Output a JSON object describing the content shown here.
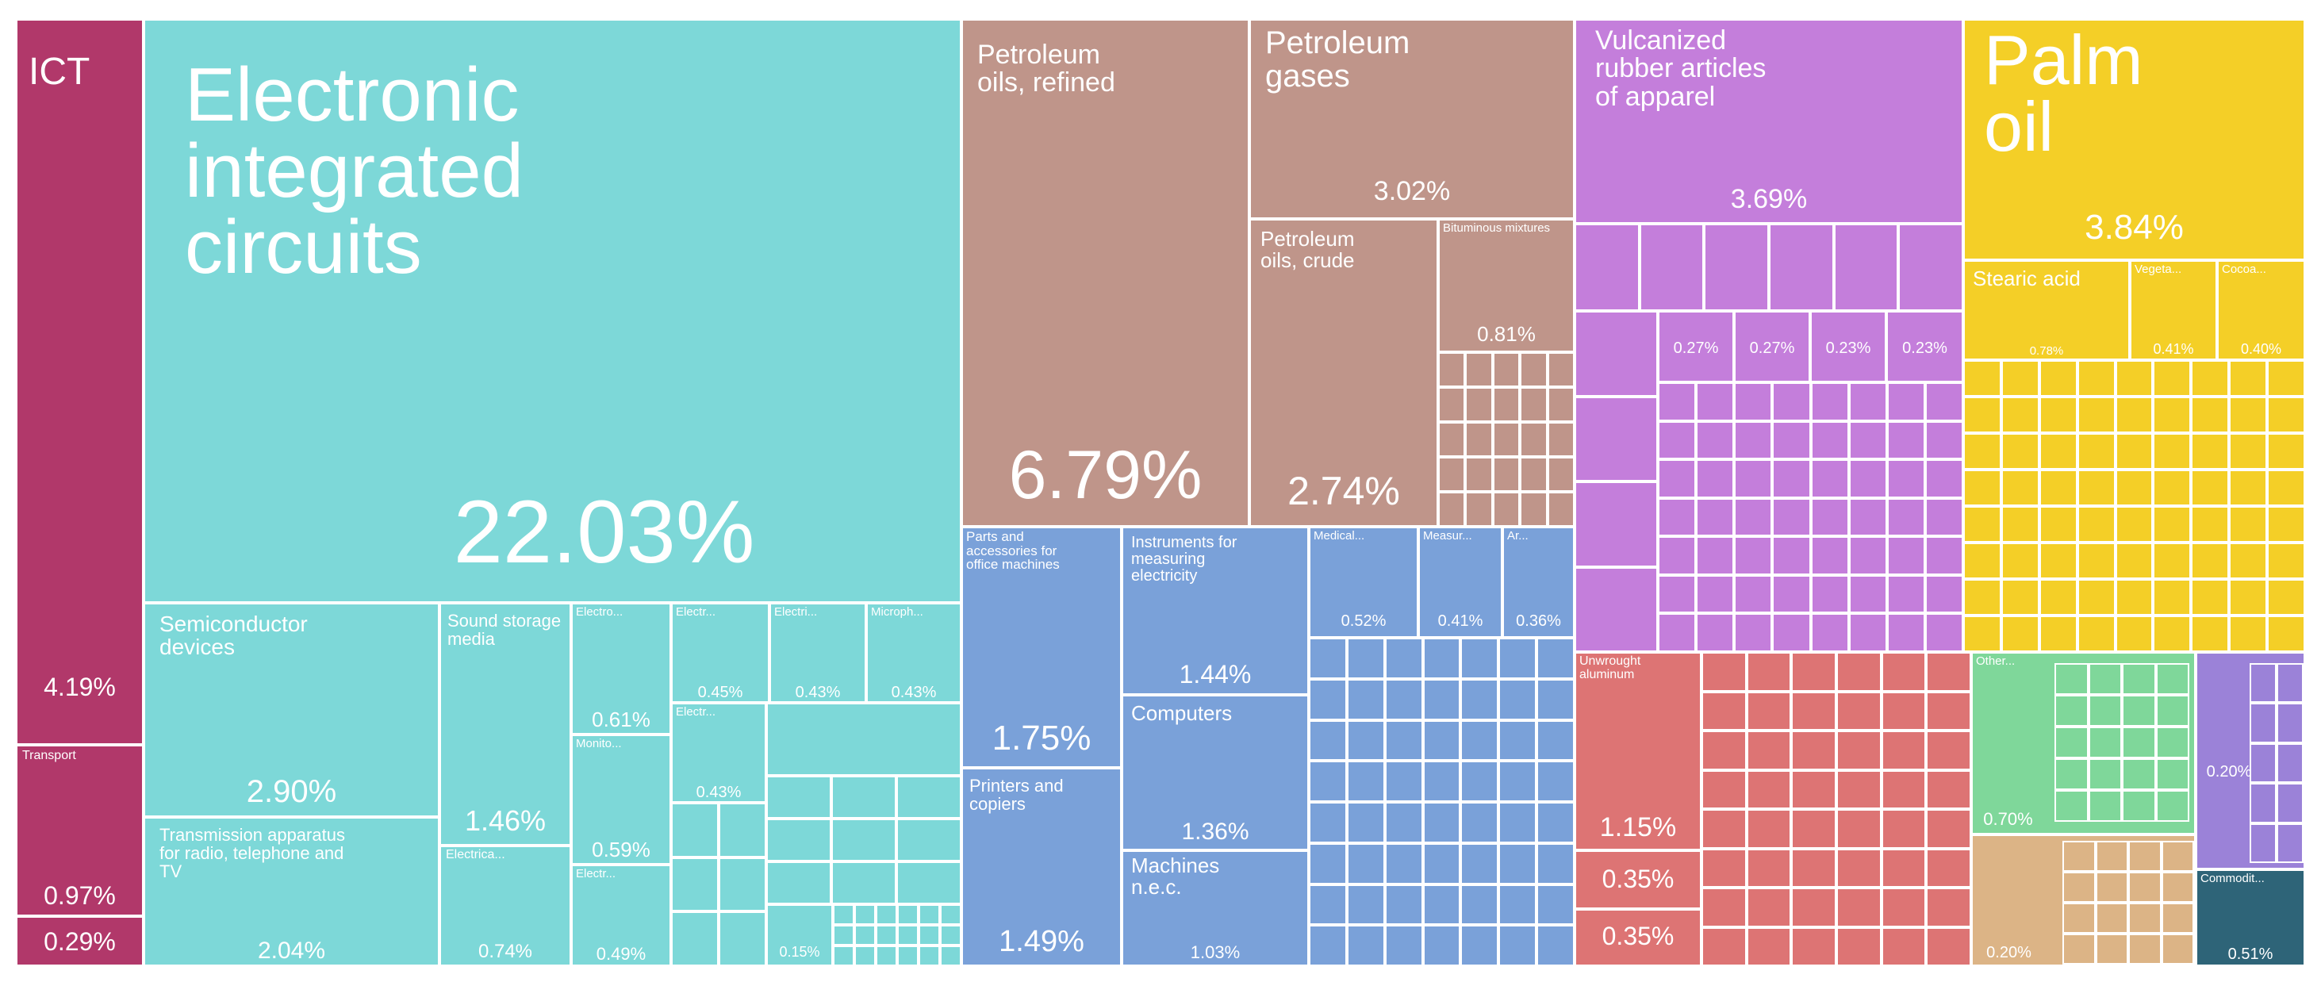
{
  "colors": {
    "ict": "#b1386a",
    "electronics": "#7dd8d8",
    "petroleum": "#bf958a",
    "machinery": "#7aa1d9",
    "rubber": "#c47edb",
    "palm": "#f4cf27",
    "metals": "#dd7474",
    "green": "#7fd79a",
    "purple": "#9b82d8",
    "tan": "#dcb486",
    "teal": "#2e6478"
  },
  "chart_data": {
    "type": "treemap",
    "items": [
      {
        "name": "ICT",
        "value": 4.19,
        "group": "ict"
      },
      {
        "name": "Transport",
        "value": 0.97,
        "group": "ict"
      },
      {
        "name": "",
        "value": 0.29,
        "group": "ict"
      },
      {
        "name": "Electronic integrated circuits",
        "value": 22.03,
        "group": "electronics"
      },
      {
        "name": "Semiconductor devices",
        "value": 2.9,
        "group": "electronics"
      },
      {
        "name": "Transmission apparatus for radio, telephone and TV",
        "value": 2.04,
        "group": "electronics"
      },
      {
        "name": "Sound storage media",
        "value": 1.46,
        "group": "electronics"
      },
      {
        "name": "Electrica...",
        "value": 0.74,
        "group": "electronics"
      },
      {
        "name": "Electro...",
        "value": 0.61,
        "group": "electronics"
      },
      {
        "name": "Monito...",
        "value": 0.59,
        "group": "electronics"
      },
      {
        "name": "Electr...",
        "value": 0.49,
        "group": "electronics"
      },
      {
        "name": "Electr...",
        "value": 0.45,
        "group": "electronics"
      },
      {
        "name": "Electri...",
        "value": 0.43,
        "group": "electronics"
      },
      {
        "name": "Microph...",
        "value": 0.43,
        "group": "electronics"
      },
      {
        "name": "Electr...",
        "value": 0.43,
        "group": "electronics"
      },
      {
        "name": "",
        "value": 0.15,
        "group": "electronics"
      },
      {
        "name": "Petroleum oils, refined",
        "value": 6.79,
        "group": "petroleum"
      },
      {
        "name": "Petroleum gases",
        "value": 3.02,
        "group": "petroleum"
      },
      {
        "name": "Petroleum oils, crude",
        "value": 2.74,
        "group": "petroleum"
      },
      {
        "name": "Bituminous mixtures",
        "value": 0.81,
        "group": "petroleum"
      },
      {
        "name": "Parts and accessories for office machines",
        "value": 1.75,
        "group": "machinery"
      },
      {
        "name": "Printers and copiers",
        "value": 1.49,
        "group": "machinery"
      },
      {
        "name": "Instruments for measuring electricity",
        "value": 1.44,
        "group": "machinery"
      },
      {
        "name": "Computers",
        "value": 1.36,
        "group": "machinery"
      },
      {
        "name": "Machines n.e.c.",
        "value": 1.03,
        "group": "machinery"
      },
      {
        "name": "Medical...",
        "value": 0.52,
        "group": "machinery"
      },
      {
        "name": "Measur...",
        "value": 0.41,
        "group": "machinery"
      },
      {
        "name": "Ar...",
        "value": 0.36,
        "group": "machinery"
      },
      {
        "name": "Vulcanized rubber articles of apparel",
        "value": 3.69,
        "group": "rubber"
      },
      {
        "name": "",
        "value": 0.27,
        "group": "rubber"
      },
      {
        "name": "",
        "value": 0.27,
        "group": "rubber"
      },
      {
        "name": "",
        "value": 0.23,
        "group": "rubber"
      },
      {
        "name": "",
        "value": 0.23,
        "group": "rubber"
      },
      {
        "name": "Palm oil",
        "value": 3.84,
        "group": "palm"
      },
      {
        "name": "Stearic acid",
        "value": 0.78,
        "group": "palm"
      },
      {
        "name": "Vegeta...",
        "value": 0.41,
        "group": "palm"
      },
      {
        "name": "Cocoa...",
        "value": 0.4,
        "group": "palm"
      },
      {
        "name": "Unwrought aluminum",
        "value": 1.15,
        "group": "metals"
      },
      {
        "name": "",
        "value": 0.35,
        "group": "metals"
      },
      {
        "name": "",
        "value": 0.35,
        "group": "metals"
      },
      {
        "name": "Other...",
        "value": 0.7,
        "group": "green"
      },
      {
        "name": "",
        "value": 0.2,
        "group": "purple"
      },
      {
        "name": "",
        "value": 0.2,
        "group": "tan"
      },
      {
        "name": "Commodit...",
        "value": 0.51,
        "group": "teal"
      }
    ]
  },
  "labels": {
    "ict_name": "ICT",
    "ict_pct": "4.19%",
    "transport_name": "Transport",
    "transport_pct": "0.97%",
    "ict_small_pct": "0.29%",
    "eic_name": "Electronic integrated circuits",
    "eic_pct": "22.03%",
    "semi_name": "Semiconductor devices",
    "semi_pct": "2.90%",
    "trans_name": "Transmission apparatus for radio, telephone and TV",
    "trans_pct": "2.04%",
    "sound_name": "Sound storage media",
    "sound_pct": "1.46%",
    "elca_name": "Electrica...",
    "elca_pct": "0.74%",
    "elec1_name": "Electro...",
    "elec1_pct": "0.61%",
    "monit_name": "Monito...",
    "monit_pct": "0.59%",
    "elec2_name": "Electr...",
    "elec2_pct": "0.49%",
    "elec3_name": "Electr...",
    "elec3_pct": "0.45%",
    "elec4_name": "Electri...",
    "elec4_pct": "0.43%",
    "micro_name": "Microph...",
    "micro_pct": "0.43%",
    "elec5_name": "Electr...",
    "elec5_pct": "0.43%",
    "small15_pct": "0.15%",
    "pref_name": "Petroleum oils, refined",
    "pref_pct": "6.79%",
    "pgas_name": "Petroleum gases",
    "pgas_pct": "3.02%",
    "pcrude_name": "Petroleum oils, crude",
    "pcrude_pct": "2.74%",
    "bitum_name": "Bituminous mixtures",
    "bitum_pct": "0.81%",
    "parts_name": "Parts and accessories for office machines",
    "parts_pct": "1.75%",
    "print_name": "Printers and copiers",
    "print_pct": "1.49%",
    "instr_name": "Instruments for measuring electricity",
    "instr_pct": "1.44%",
    "comp_name": "Computers",
    "comp_pct": "1.36%",
    "mach_name": "Machines n.e.c.",
    "mach_pct": "1.03%",
    "med_name": "Medical...",
    "med_pct": "0.52%",
    "meas_name": "Measur...",
    "meas_pct": "0.41%",
    "ar_name": "Ar...",
    "ar_pct": "0.36%",
    "vulc_name": "Vulcanized rubber articles of apparel",
    "vulc_pct": "3.69%",
    "r1_pct": "0.27%",
    "r2_pct": "0.27%",
    "r3_pct": "0.23%",
    "r4_pct": "0.23%",
    "palm_name": "Palm oil",
    "palm_pct": "3.84%",
    "stearic_name": "Stearic acid",
    "stearic_pct": "0.78%",
    "veg_name": "Vegeta...",
    "veg_pct": "0.41%",
    "cocoa_name": "Cocoa...",
    "cocoa_pct": "0.40%",
    "alum_name": "Unwrought aluminum",
    "alum_pct": "1.15%",
    "m1_pct": "0.35%",
    "m2_pct": "0.35%",
    "other_name": "Other...",
    "other_pct": "0.70%",
    "purp_pct": "0.20%",
    "tan_pct": "0.20%",
    "comm_name": "Commodit...",
    "comm_pct": "0.51%"
  }
}
